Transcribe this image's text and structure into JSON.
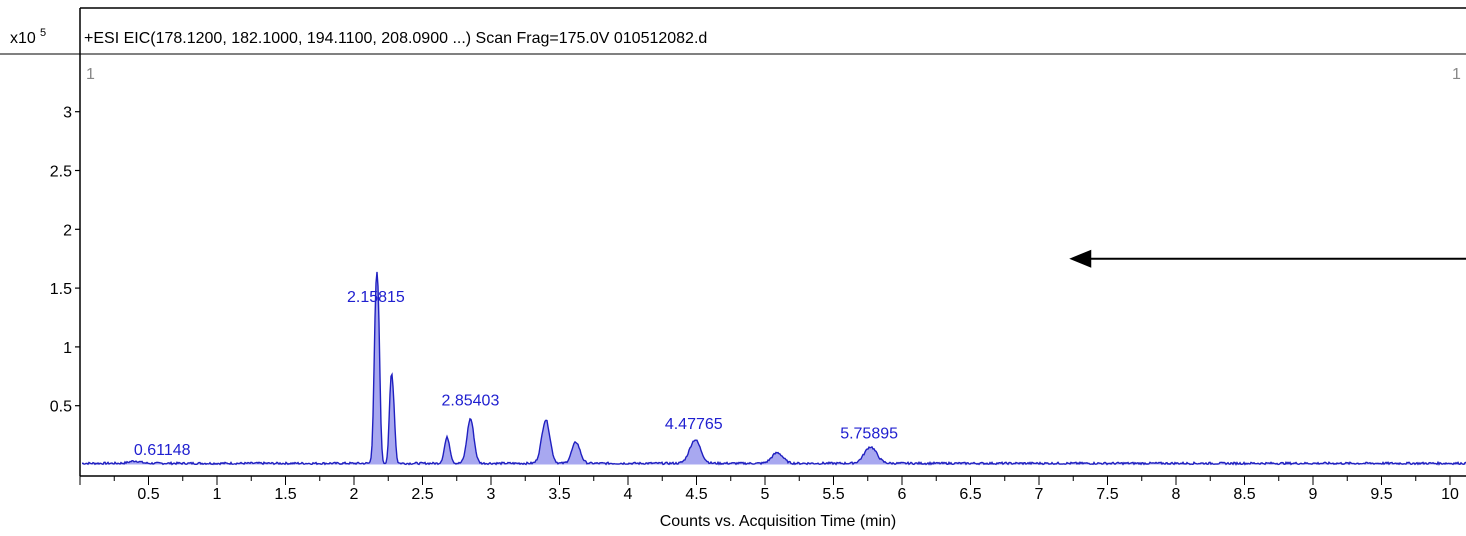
{
  "chart_data": {
    "type": "line",
    "header": "+ESI EIC(178.1200, 182.1000, 194.1100, 208.0900 ...) Scan Frag=175.0V 010512082.d",
    "y_exponent_label": "x10",
    "y_exponent_power": "5",
    "panel_index_left": "1",
    "panel_index_right": "1",
    "xlabel": "Counts vs. Acquisition Time (min)",
    "ylabel": "",
    "xlim": [
      0.0,
      10.2
    ],
    "ylim": [
      -0.04,
      3.45
    ],
    "x_ticks": [
      0.5,
      1,
      1.5,
      2,
      2.5,
      3,
      3.5,
      4,
      4.5,
      5,
      5.5,
      6,
      6.5,
      7,
      7.5,
      8,
      8.5,
      9,
      9.5,
      10
    ],
    "x_tick_labels": [
      "0.5",
      "1",
      "1.5",
      "2",
      "2.5",
      "3",
      "3.5",
      "4",
      "4.5",
      "5",
      "5.5",
      "6",
      "6.5",
      "7",
      "7.5",
      "8",
      "8.5",
      "9",
      "9.5",
      "10"
    ],
    "y_ticks": [
      0.5,
      1,
      1.5,
      2,
      2.5,
      3
    ],
    "y_tick_labels": [
      "0.5",
      "1",
      "1.5",
      "2",
      "2.5",
      "3"
    ],
    "baseline": 0.01,
    "peaks": [
      {
        "rt": 0.4,
        "height": 0.02,
        "width": 0.04
      },
      {
        "rt": 2.16,
        "height": 1.3,
        "width": 0.014
      },
      {
        "rt": 2.18,
        "height": 0.85,
        "width": 0.012
      },
      {
        "rt": 2.27,
        "height": 0.65,
        "width": 0.013
      },
      {
        "rt": 2.29,
        "height": 0.35,
        "width": 0.012
      },
      {
        "rt": 2.68,
        "height": 0.22,
        "width": 0.02
      },
      {
        "rt": 2.85,
        "height": 0.38,
        "width": 0.025
      },
      {
        "rt": 3.4,
        "height": 0.37,
        "width": 0.03
      },
      {
        "rt": 3.62,
        "height": 0.18,
        "width": 0.03
      },
      {
        "rt": 4.49,
        "height": 0.2,
        "width": 0.04
      },
      {
        "rt": 5.09,
        "height": 0.09,
        "width": 0.04
      },
      {
        "rt": 5.77,
        "height": 0.14,
        "width": 0.045
      }
    ],
    "annotations": [
      {
        "text": "2.15815",
        "x": 2.16,
        "y": 1.38
      },
      {
        "text": "2.85403",
        "x": 2.85,
        "y": 0.5
      },
      {
        "text": "4.47765",
        "x": 4.48,
        "y": 0.3
      },
      {
        "text": "5.75895",
        "x": 5.76,
        "y": 0.22
      },
      {
        "text": "0.61148",
        "x": 0.6,
        "y": 0.08
      }
    ],
    "arrow": {
      "from": [
        10.2,
        1.75
      ],
      "to": [
        7.25,
        1.75
      ]
    },
    "colors": {
      "trace": "#2020c0",
      "fill": "#a8a8f0",
      "label": "#2020d0",
      "axis": "#000000",
      "arrow": "#000000"
    },
    "grid": false
  }
}
